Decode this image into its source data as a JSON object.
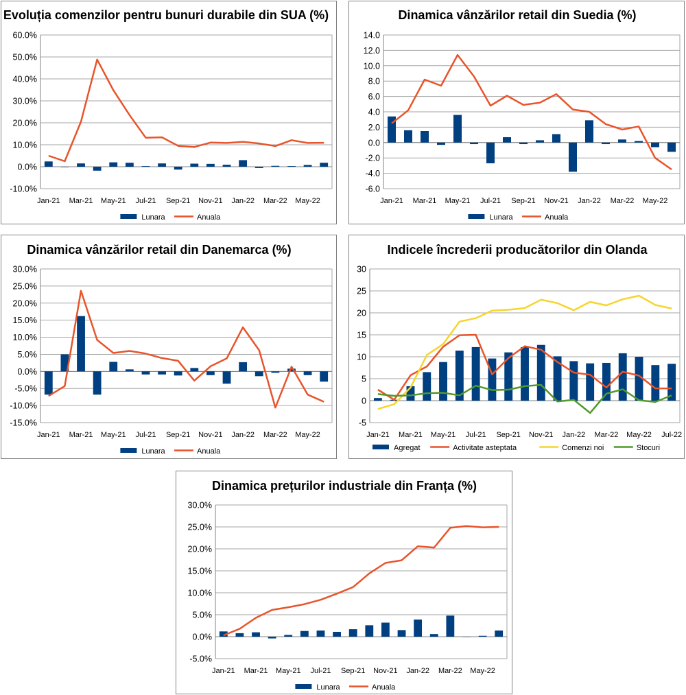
{
  "colors": {
    "bar": "#003f80",
    "annual": "#e8542a",
    "activity": "#e8542a",
    "orders": "#f5d52c",
    "stocks": "#4f9a2a",
    "grid": "#a6a6a6",
    "axis": "#808080"
  },
  "chart_data": [
    {
      "type": "bar+line",
      "title": "Evoluția comenzilor pentru bunuri durabile din SUA (%)",
      "categories": [
        "Jan-21",
        "Feb-21",
        "Mar-21",
        "Apr-21",
        "May-21",
        "Jun-21",
        "Jul-21",
        "Aug-21",
        "Sep-21",
        "Oct-21",
        "Nov-21",
        "Dec-21",
        "Jan-22",
        "Feb-22",
        "Mar-22",
        "Apr-22",
        "May-22",
        "Jun-22"
      ],
      "x_tick_labels": [
        "Jan-21",
        "Mar-21",
        "May-21",
        "Jul-21",
        "Sep-21",
        "Nov-21",
        "Jan-22",
        "Mar-22",
        "May-22"
      ],
      "ylim": [
        -10,
        60
      ],
      "y_step": 10,
      "y_format": "pct1",
      "y_tick_labels": [
        "-10.0%",
        "0.0%",
        "10.0%",
        "20.0%",
        "30.0%",
        "40.0%",
        "50.0%",
        "60.0%"
      ],
      "series": [
        {
          "name": "Lunara",
          "kind": "bar",
          "color_key": "bar",
          "values": [
            2.4,
            -0.2,
            1.5,
            -1.8,
            2.0,
            1.8,
            0.3,
            1.5,
            -1.3,
            1.4,
            1.3,
            0.9,
            3.0,
            -0.6,
            0.4,
            0.3,
            0.8,
            1.8
          ]
        },
        {
          "name": "Anuala",
          "kind": "line",
          "color_key": "annual",
          "values": [
            5.0,
            2.5,
            20.5,
            48.8,
            34.8,
            23.5,
            13.2,
            13.4,
            9.5,
            9.0,
            11.0,
            10.8,
            11.3,
            10.6,
            9.4,
            12.1,
            10.8,
            10.9
          ]
        }
      ],
      "legend": [
        "Lunara",
        "Anuala"
      ],
      "legend_position": "bottom"
    },
    {
      "type": "bar+line",
      "title": "Dinamica vânzărilor retail din Suedia (%)",
      "categories": [
        "Jan-21",
        "Feb-21",
        "Mar-21",
        "Apr-21",
        "May-21",
        "Jun-21",
        "Jul-21",
        "Aug-21",
        "Sep-21",
        "Oct-21",
        "Nov-21",
        "Dec-21",
        "Jan-22",
        "Feb-22",
        "Mar-22",
        "Apr-22",
        "May-22",
        "Jun-22"
      ],
      "x_tick_labels": [
        "Jan-21",
        "Mar-21",
        "May-21",
        "Jul-21",
        "Sep-21",
        "Nov-21",
        "Jan-22",
        "Mar-22",
        "May-22"
      ],
      "ylim": [
        -6,
        14
      ],
      "y_step": 2,
      "y_format": "fix1",
      "y_tick_labels": [
        "-6.0",
        "-4.0",
        "-2.0",
        "0.0",
        "2.0",
        "4.0",
        "6.0",
        "8.0",
        "10.0",
        "12.0",
        "14.0"
      ],
      "series": [
        {
          "name": "Lunara",
          "kind": "bar",
          "color_key": "bar",
          "values": [
            3.4,
            1.6,
            1.5,
            -0.3,
            3.6,
            -0.2,
            -2.7,
            0.7,
            -0.2,
            0.3,
            1.1,
            -3.8,
            2.9,
            -0.2,
            0.4,
            0.2,
            -0.6,
            -1.2
          ]
        },
        {
          "name": "Anuala",
          "kind": "line",
          "color_key": "annual",
          "values": [
            2.5,
            4.2,
            8.2,
            7.4,
            11.4,
            8.6,
            4.8,
            6.1,
            4.9,
            5.2,
            6.3,
            4.3,
            4.0,
            2.4,
            1.7,
            2.1,
            -2.0,
            -3.5
          ]
        }
      ],
      "legend": [
        "Lunara",
        "Anuala"
      ],
      "legend_position": "bottom"
    },
    {
      "type": "bar+line",
      "title": "Dinamica vânzărilor retail din Danemarca (%)",
      "categories": [
        "Jan-21",
        "Feb-21",
        "Mar-21",
        "Apr-21",
        "May-21",
        "Jun-21",
        "Jul-21",
        "Aug-21",
        "Sep-21",
        "Oct-21",
        "Nov-21",
        "Dec-21",
        "Jan-22",
        "Feb-22",
        "Mar-22",
        "Apr-22",
        "May-22",
        "Jun-22"
      ],
      "x_tick_labels": [
        "Jan-21",
        "Mar-21",
        "May-21",
        "Jul-21",
        "Sep-21",
        "Nov-21",
        "Jan-22",
        "Mar-22",
        "May-22"
      ],
      "ylim": [
        -15,
        30
      ],
      "y_step": 5,
      "y_format": "pct1",
      "y_tick_labels": [
        "-15.0%",
        "-10.0%",
        "-5.0%",
        "0.0%",
        "5.0%",
        "10.0%",
        "15.0%",
        "20.0%",
        "25.0%",
        "30.0%"
      ],
      "series": [
        {
          "name": "Lunara",
          "kind": "bar",
          "color_key": "bar",
          "values": [
            -6.8,
            5.0,
            16.2,
            -6.8,
            2.8,
            0.6,
            -0.9,
            -0.9,
            -1.2,
            1.0,
            -1.1,
            -3.6,
            2.7,
            -1.4,
            -0.4,
            0.8,
            -1.1,
            -3.0
          ]
        },
        {
          "name": "Anuala",
          "kind": "line",
          "color_key": "annual",
          "values": [
            -7.2,
            -4.3,
            23.6,
            9.2,
            5.4,
            6.0,
            5.2,
            3.9,
            3.1,
            -2.7,
            1.5,
            3.8,
            12.9,
            6.2,
            -10.6,
            1.4,
            -6.8,
            -8.9
          ]
        }
      ],
      "legend": [
        "Lunara",
        "Anuala"
      ],
      "legend_position": "bottom"
    },
    {
      "type": "bar+line",
      "title": "Indicele încrederii producătorilor din Olanda",
      "categories": [
        "Jan-21",
        "Feb-21",
        "Mar-21",
        "Apr-21",
        "May-21",
        "Jun-21",
        "Jul-21",
        "Aug-21",
        "Sep-21",
        "Oct-21",
        "Nov-21",
        "Dec-21",
        "Jan-22",
        "Feb-22",
        "Mar-22",
        "Apr-22",
        "May-22",
        "Jun-22",
        "Jul-22"
      ],
      "x_tick_labels": [
        "Jan-21",
        "Mar-21",
        "May-21",
        "Jul-21",
        "Sep-21",
        "Nov-21",
        "Jan-22",
        "Mar-22",
        "May-22",
        "Jul-22"
      ],
      "ylim": [
        -5,
        30
      ],
      "y_step": 5,
      "y_format": "int",
      "y_tick_labels": [
        "-5",
        "0",
        "5",
        "10",
        "15",
        "20",
        "25",
        "30"
      ],
      "series": [
        {
          "name": "Agregat",
          "kind": "bar",
          "color_key": "bar",
          "values": [
            0.6,
            0.2,
            3.3,
            6.5,
            8.8,
            11.4,
            12.2,
            9.6,
            11.0,
            12.2,
            12.7,
            10.1,
            9.0,
            8.5,
            8.6,
            10.8,
            10.0,
            8.1,
            8.4
          ]
        },
        {
          "name": "Activitate asteptata",
          "kind": "line",
          "color_key": "activity",
          "values": [
            2.5,
            0.2,
            5.8,
            7.8,
            12.3,
            14.9,
            15.0,
            6.0,
            9.7,
            12.4,
            11.6,
            8.8,
            6.4,
            5.9,
            3.0,
            6.6,
            5.7,
            2.8,
            2.8
          ]
        },
        {
          "name": "Comenzi noi",
          "kind": "line",
          "color_key": "orders",
          "values": [
            -1.9,
            -0.8,
            3.0,
            10.4,
            12.9,
            18.0,
            18.8,
            20.5,
            20.7,
            21.1,
            23.0,
            22.2,
            20.6,
            22.5,
            21.7,
            23.1,
            23.9,
            21.8,
            21.0
          ]
        },
        {
          "name": "Stocuri",
          "kind": "line",
          "color_key": "stocks",
          "values": [
            1.5,
            1.1,
            1.2,
            1.7,
            1.8,
            1.2,
            3.4,
            2.4,
            2.5,
            3.3,
            3.6,
            -0.2,
            0.2,
            -2.8,
            1.6,
            2.6,
            0.1,
            -0.3,
            1.2
          ]
        }
      ],
      "legend": [
        "Agregat",
        "Activitate asteptata",
        "Comenzi noi",
        "Stocuri"
      ],
      "legend_position": "bottom"
    },
    {
      "type": "bar+line",
      "title": "Dinamica prețurilor industriale din Franța (%)",
      "categories": [
        "Jan-21",
        "Feb-21",
        "Mar-21",
        "Apr-21",
        "May-21",
        "Jun-21",
        "Jul-21",
        "Aug-21",
        "Sep-21",
        "Oct-21",
        "Nov-21",
        "Dec-21",
        "Jan-22",
        "Feb-22",
        "Mar-22",
        "Apr-22",
        "May-22",
        "Jun-22"
      ],
      "x_tick_labels": [
        "Jan-21",
        "Mar-21",
        "May-21",
        "Jul-21",
        "Sep-21",
        "Nov-21",
        "Jan-22",
        "Mar-22",
        "May-22"
      ],
      "ylim": [
        -5,
        30
      ],
      "y_step": 5,
      "y_format": "pct1",
      "y_tick_labels": [
        "-5.0%",
        "0.0%",
        "5.0%",
        "10.0%",
        "15.0%",
        "20.0%",
        "25.0%",
        "30.0%"
      ],
      "series": [
        {
          "name": "Lunara",
          "kind": "bar",
          "color_key": "bar",
          "values": [
            1.2,
            0.8,
            1.0,
            -0.4,
            0.4,
            1.3,
            1.4,
            1.1,
            1.7,
            2.6,
            3.2,
            1.5,
            3.9,
            0.6,
            4.8,
            0.0,
            0.2,
            1.4
          ]
        },
        {
          "name": "Anuala",
          "kind": "line",
          "color_key": "annual",
          "values": [
            0.3,
            1.8,
            4.3,
            6.1,
            6.7,
            7.4,
            8.4,
            9.8,
            11.3,
            14.4,
            16.8,
            17.4,
            20.6,
            20.3,
            24.8,
            25.2,
            24.9,
            25.0
          ]
        }
      ],
      "legend": [
        "Lunara",
        "Anuala"
      ],
      "legend_position": "bottom"
    }
  ]
}
